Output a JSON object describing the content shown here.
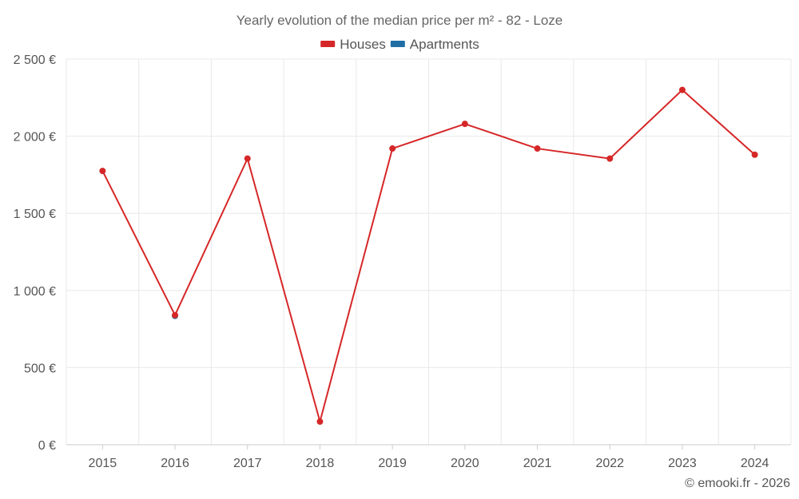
{
  "chart_data": {
    "type": "line",
    "title": "Yearly evolution of the median price per m² - 82 - Loze",
    "categories": [
      "2015",
      "2016",
      "2017",
      "2018",
      "2019",
      "2020",
      "2021",
      "2022",
      "2023",
      "2024"
    ],
    "y_ticks": [
      0,
      500,
      1000,
      1500,
      2000,
      2500
    ],
    "y_tick_labels": [
      "0 €",
      "500 €",
      "1 000 €",
      "1 500 €",
      "2 000 €",
      "2 500 €"
    ],
    "ylim": [
      0,
      2500
    ],
    "xlabel": "",
    "ylabel": "",
    "grid": true,
    "legend_position": "top-center",
    "series": [
      {
        "name": "Houses",
        "color": "#d62728",
        "values": [
          1775,
          840,
          1855,
          150,
          1920,
          2080,
          1920,
          1855,
          2300,
          1880
        ]
      },
      {
        "name": "Apartments",
        "color": "#1f6fa5",
        "values": [
          null,
          835,
          null,
          null,
          null,
          null,
          null,
          null,
          null,
          null
        ]
      }
    ]
  },
  "credit": "© emooki.fr - 2026"
}
